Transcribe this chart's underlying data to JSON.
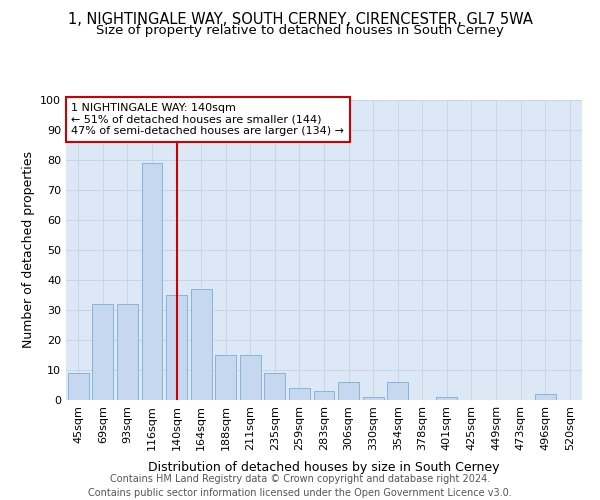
{
  "title1": "1, NIGHTINGALE WAY, SOUTH CERNEY, CIRENCESTER, GL7 5WA",
  "title2": "Size of property relative to detached houses in South Cerney",
  "xlabel": "Distribution of detached houses by size in South Cerney",
  "ylabel": "Number of detached properties",
  "categories": [
    "45sqm",
    "69sqm",
    "93sqm",
    "116sqm",
    "140sqm",
    "164sqm",
    "188sqm",
    "211sqm",
    "235sqm",
    "259sqm",
    "283sqm",
    "306sqm",
    "330sqm",
    "354sqm",
    "378sqm",
    "401sqm",
    "425sqm",
    "449sqm",
    "473sqm",
    "496sqm",
    "520sqm"
  ],
  "values": [
    9,
    32,
    32,
    79,
    35,
    37,
    15,
    15,
    9,
    4,
    3,
    6,
    1,
    6,
    0,
    1,
    0,
    0,
    0,
    2,
    0
  ],
  "bar_color": "#c5d8ef",
  "bar_edge_color": "#7aadd4",
  "vline_x_index": 4,
  "vline_color": "#cc0000",
  "annotation_text": "1 NIGHTINGALE WAY: 140sqm\n← 51% of detached houses are smaller (144)\n47% of semi-detached houses are larger (134) →",
  "annotation_box_color": "#cc0000",
  "annotation_text_color": "#000000",
  "ylim": [
    0,
    100
  ],
  "yticks": [
    0,
    10,
    20,
    30,
    40,
    50,
    60,
    70,
    80,
    90,
    100
  ],
  "grid_color": "#c8d4e8",
  "bg_color": "#dce8f5",
  "footer": "Contains HM Land Registry data © Crown copyright and database right 2024.\nContains public sector information licensed under the Open Government Licence v3.0.",
  "title_fontsize": 10.5,
  "subtitle_fontsize": 9.5,
  "axis_label_fontsize": 9,
  "tick_fontsize": 8,
  "annotation_fontsize": 8,
  "footer_fontsize": 7
}
